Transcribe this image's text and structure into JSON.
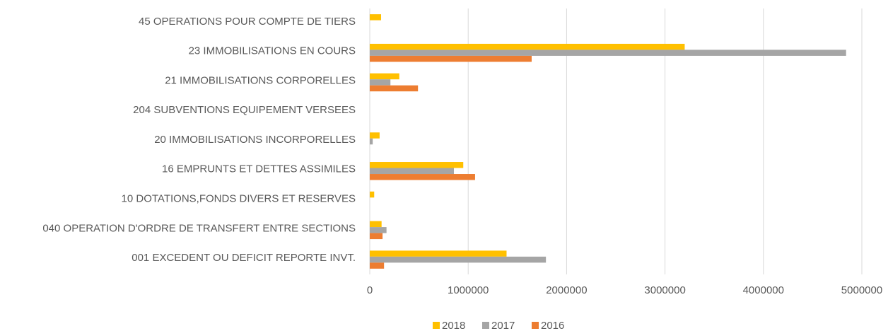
{
  "chart_data": {
    "type": "barh",
    "categories": [
      "45  OPERATIONS POUR COMPTE DE TIERS",
      "23  IMMOBILISATIONS EN COURS",
      "21  IMMOBILISATIONS CORPORELLES",
      "204  SUBVENTIONS EQUIPEMENT VERSEES",
      "20  IMMOBILISATIONS INCORPORELLES",
      "16  EMPRUNTS ET DETTES ASSIMILES",
      "10  DOTATIONS,FONDS DIVERS ET RESERVES",
      "040  OPERATION D'ORDRE DE TRANSFERT ENTRE SECTIONS",
      "001  EXCEDENT OU DEFICIT REPORTE INVT."
    ],
    "series": [
      {
        "name": "2018",
        "color": "#ffc000",
        "values": [
          115000,
          3200000,
          300000,
          0,
          100000,
          950000,
          45000,
          120000,
          1390000
        ]
      },
      {
        "name": "2017",
        "color": "#a5a5a5",
        "values": [
          0,
          4840000,
          210000,
          0,
          30000,
          855000,
          0,
          170000,
          1790000
        ]
      },
      {
        "name": "2016",
        "color": "#ed7d31",
        "values": [
          0,
          1645000,
          490000,
          0,
          0,
          1070000,
          0,
          130000,
          145000
        ]
      }
    ],
    "xlim": [
      0,
      5000000
    ],
    "xticks": [
      0,
      1000000,
      2000000,
      3000000,
      4000000,
      5000000
    ],
    "grid": true,
    "legend": "bottom"
  }
}
